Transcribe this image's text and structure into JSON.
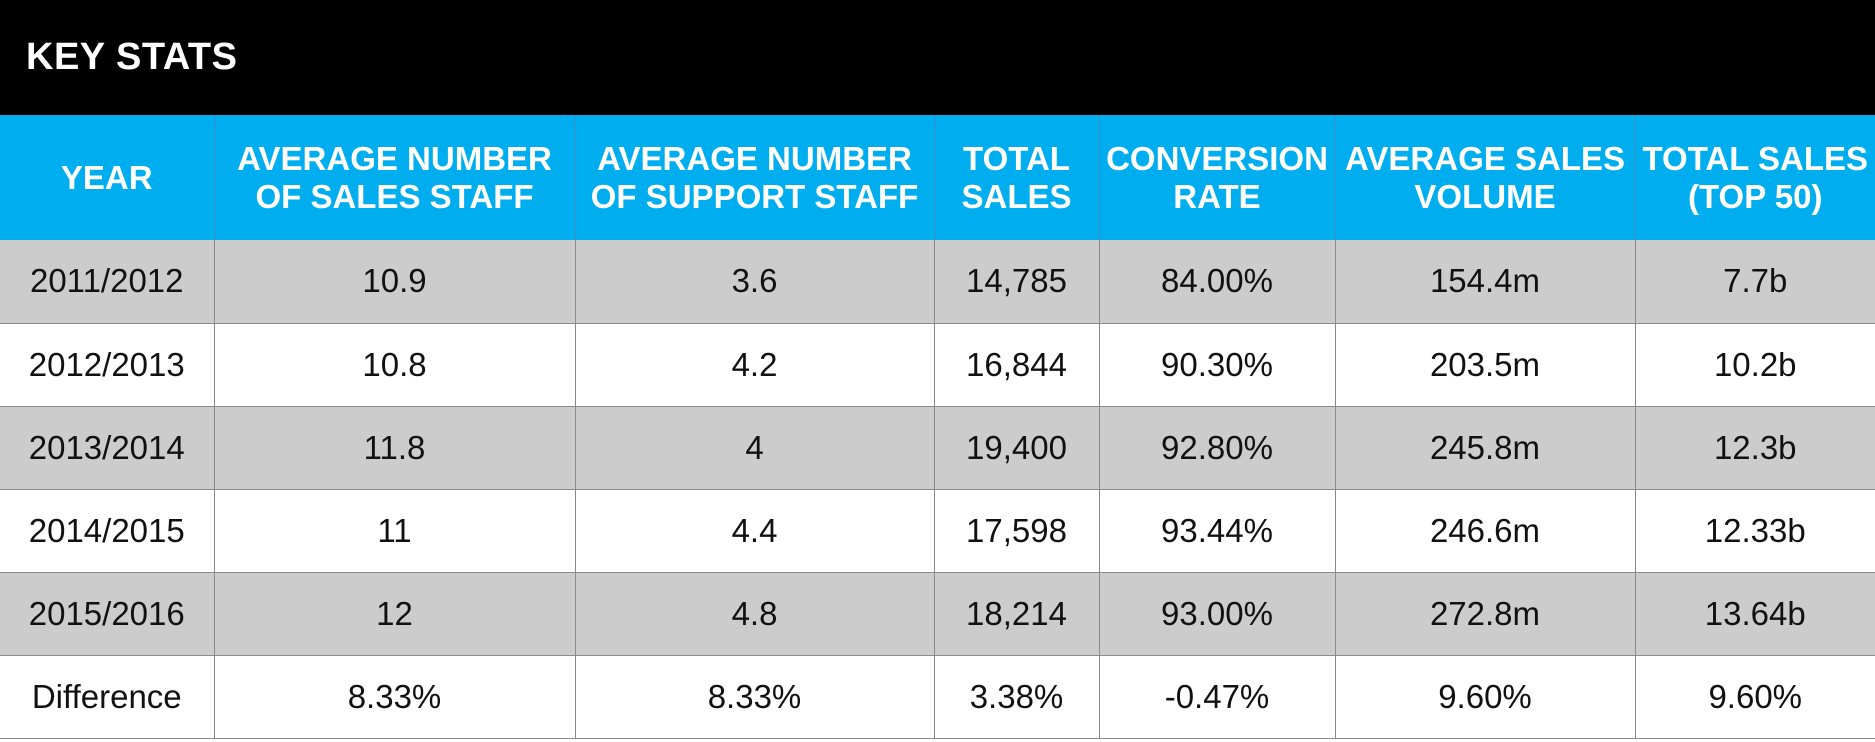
{
  "title": "KEY STATS",
  "chart_data": {
    "type": "table",
    "title": "KEY STATS",
    "columns": [
      "YEAR",
      "AVERAGE NUMBER\nOF SALES STAFF",
      "AVERAGE NUMBER\nOF SUPPORT STAFF",
      "TOTAL\nSALES",
      "CONVERSION\nRATE",
      "AVERAGE SALES\nVOLUME",
      "TOTAL SALES\n(TOP 50)"
    ],
    "rows": [
      [
        "2011/2012",
        "10.9",
        "3.6",
        "14,785",
        "84.00%",
        "154.4m",
        "7.7b"
      ],
      [
        "2012/2013",
        "10.8",
        "4.2",
        "16,844",
        "90.30%",
        "203.5m",
        "10.2b"
      ],
      [
        "2013/2014",
        "11.8",
        "4",
        "19,400",
        "92.80%",
        "245.8m",
        "12.3b"
      ],
      [
        "2014/2015",
        "11",
        "4.4",
        "17,598",
        "93.44%",
        "246.6m",
        "12.33b"
      ],
      [
        "2015/2016",
        "12",
        "4.8",
        "18,214",
        "93.00%",
        "272.8m",
        "13.64b"
      ],
      [
        "Difference",
        "8.33%",
        "8.33%",
        "3.38%",
        "-0.47%",
        "9.60%",
        "9.60%"
      ]
    ]
  },
  "colors": {
    "title_bg": "#000000",
    "header_bg": "#00aeef",
    "shaded_row": "#cccccc",
    "plain_row": "#ffffff"
  }
}
